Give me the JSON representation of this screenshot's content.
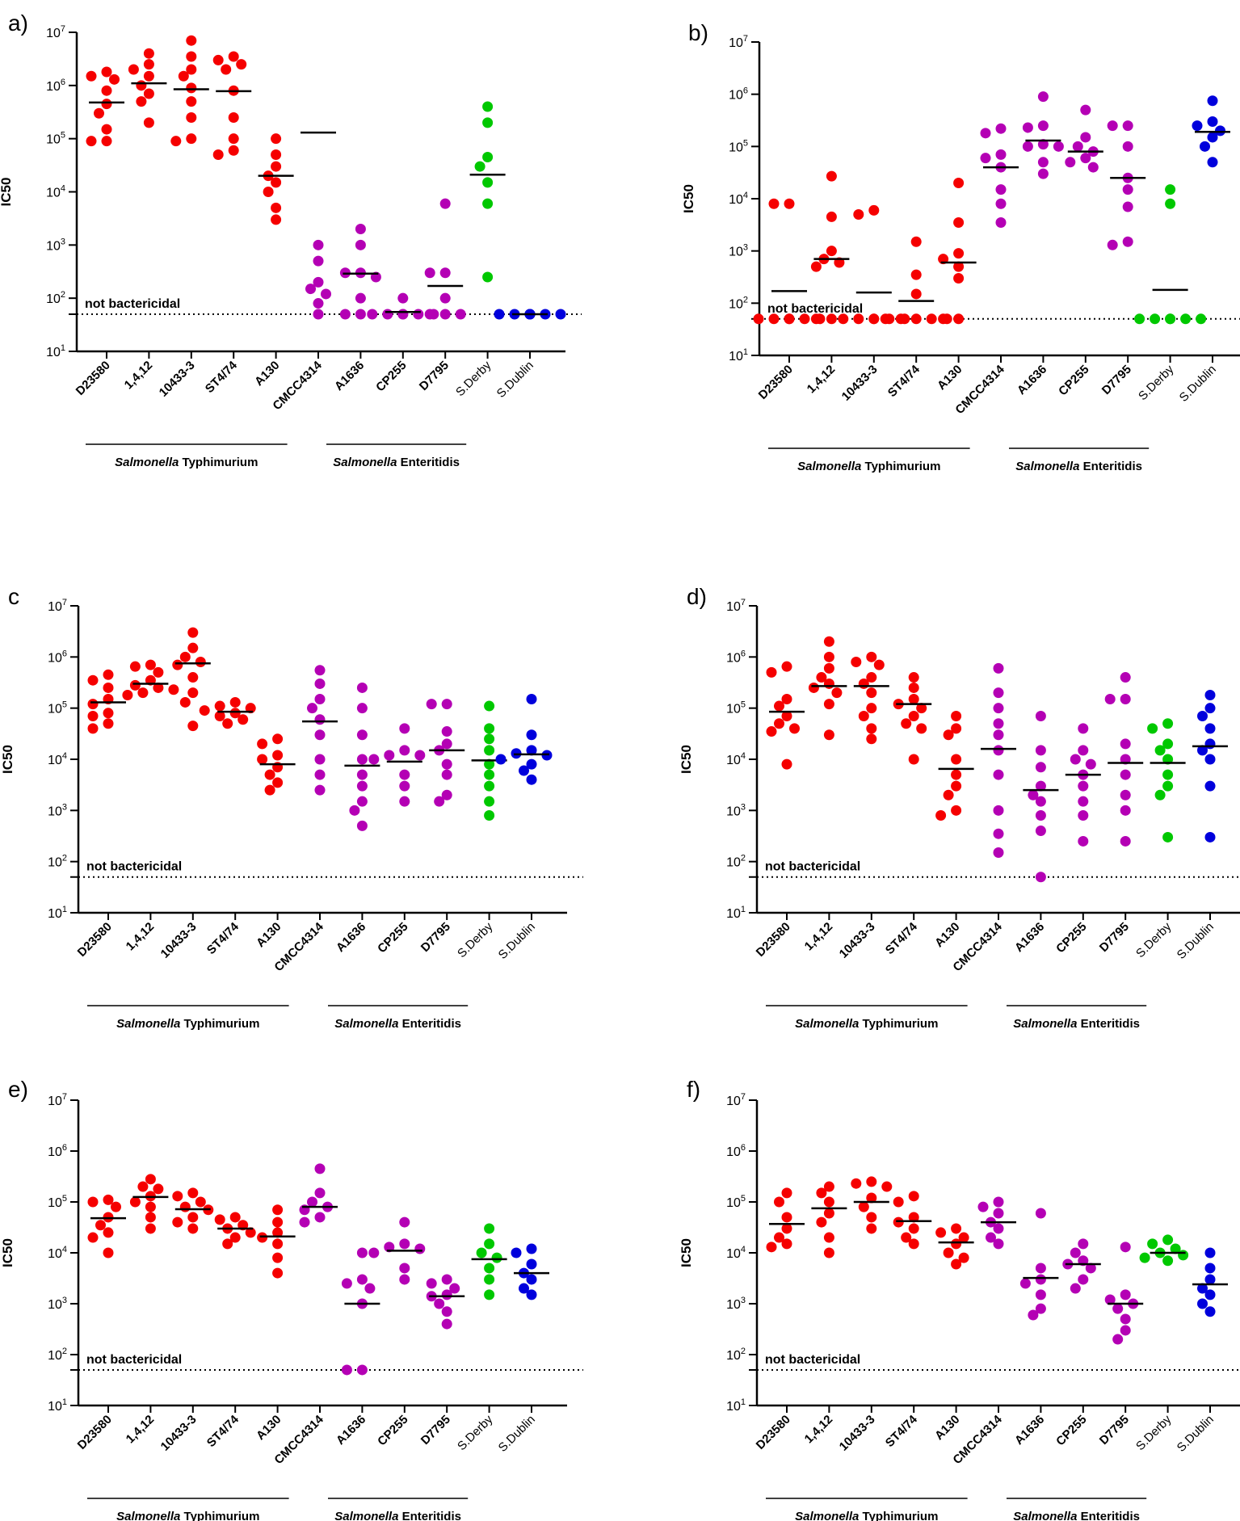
{
  "colors": {
    "Typhimurium": "#f50000",
    "Enteritidis": "#b400b4",
    "Derby": "#00c800",
    "Dublin": "#0000dc",
    "axis": "#000000"
  },
  "ylabel": "IC50",
  "threshold_label": "not bactericidal",
  "y_tick_base": "10",
  "y_tick_exps": [
    "1",
    "2",
    "3",
    "4",
    "5",
    "6",
    "7"
  ],
  "groups": {
    "typhimurium_italic": "Salmonella",
    "typhimurium_rest": " Typhimurium",
    "enteritidis_italic": "Salmonella",
    "enteritidis_rest": " Enteritidis"
  },
  "categories": [
    "D23580",
    "1,4,12",
    "10433-3",
    "ST4/74",
    "A130",
    "CMCC4314",
    "A1636",
    "CP255",
    "D7795",
    "S.Derby",
    "S.Dublin"
  ],
  "chart_data": [
    {
      "panel": "a)",
      "type": "scatter",
      "ylabel": "IC50",
      "yscale": "log",
      "ylim": [
        10,
        10000000
      ],
      "threshold": 50,
      "categories": [
        "D23580",
        "1,4,12",
        "10433-3",
        "ST4/74",
        "A130",
        "CMCC4314",
        "A1636",
        "CP255",
        "D7795",
        "S.Derby",
        "S.Dublin"
      ],
      "medians": [
        480000,
        1100000,
        850000,
        780000,
        20000,
        130000,
        290,
        55,
        170,
        21000,
        50
      ],
      "points": [
        [
          1800000,
          1500000,
          1300000,
          800000,
          450000,
          300000,
          150000,
          90000,
          90000
        ],
        [
          4000000,
          2500000,
          2000000,
          1500000,
          1000000,
          700000,
          500000,
          200000
        ],
        [
          7000000,
          3500000,
          2000000,
          1500000,
          900000,
          500000,
          250000,
          100000,
          90000
        ],
        [
          3500000,
          3000000,
          2500000,
          2000000,
          800000,
          250000,
          100000,
          60000,
          50000
        ],
        [
          100000,
          50000,
          30000,
          20000,
          15000,
          10000,
          5000,
          3000
        ],
        [
          1000,
          500,
          200,
          150,
          120,
          80,
          50
        ],
        [
          2000,
          1000,
          300,
          300,
          250,
          100,
          50,
          50
        ],
        [
          100,
          50,
          50,
          50,
          50,
          50,
          50
        ],
        [
          6000,
          300,
          300,
          100,
          50,
          50,
          50
        ],
        [
          400000,
          200000,
          45000,
          30000,
          15000,
          6000,
          250
        ],
        [
          50,
          50,
          50,
          50,
          50,
          50,
          50,
          50
        ]
      ]
    },
    {
      "panel": "b)",
      "type": "scatter",
      "ylabel": "IC50",
      "yscale": "log",
      "ylim": [
        10,
        10000000
      ],
      "threshold": 50,
      "categories": [
        "D23580",
        "1,4,12",
        "10433-3",
        "ST4/74",
        "A130",
        "CMCC4314",
        "A1636",
        "CP255",
        "D7795",
        "S.Derby",
        "S.Dublin"
      ],
      "medians": [
        170,
        700,
        160,
        110,
        600,
        40000,
        130000,
        80000,
        25000,
        180,
        190000
      ],
      "points": [
        [
          8000,
          8000,
          50,
          50,
          50,
          50,
          50,
          50
        ],
        [
          27000,
          4500,
          1000,
          700,
          600,
          500,
          50,
          50
        ],
        [
          6000,
          5000,
          50,
          50,
          50,
          50,
          50,
          50
        ],
        [
          1500,
          350,
          150,
          50,
          50,
          50,
          50,
          50
        ],
        [
          20000,
          3500,
          900,
          700,
          500,
          300,
          50,
          50
        ],
        [
          220000,
          180000,
          70000,
          60000,
          40000,
          15000,
          8000,
          3500
        ],
        [
          900000,
          250000,
          230000,
          110000,
          100000,
          100000,
          50000,
          30000
        ],
        [
          500000,
          150000,
          100000,
          80000,
          60000,
          50000,
          40000
        ],
        [
          250000,
          250000,
          100000,
          25000,
          15000,
          7000,
          1500,
          1300
        ],
        [
          15000,
          8000,
          50,
          50,
          50,
          50,
          50,
          50
        ],
        [
          750000,
          300000,
          250000,
          200000,
          150000,
          100000,
          50000
        ]
      ]
    },
    {
      "panel": "c",
      "type": "scatter",
      "ylabel": "IC50",
      "yscale": "log",
      "ylim": [
        10,
        10000000
      ],
      "threshold": 50,
      "categories": [
        "D23580",
        "1,4,12",
        "10433-3",
        "ST4/74",
        "A130",
        "CMCC4314",
        "A1636",
        "CP255",
        "D7795",
        "S.Derby",
        "S.Dublin"
      ],
      "medians": [
        130000,
        300000,
        750000,
        85000,
        8000,
        55000,
        7500,
        9000,
        15000,
        9500,
        12500
      ],
      "points": [
        [
          450000,
          350000,
          250000,
          150000,
          120000,
          80000,
          70000,
          50000,
          40000
        ],
        [
          700000,
          650000,
          500000,
          350000,
          280000,
          250000,
          230000,
          200000,
          180000
        ],
        [
          3000000,
          1500000,
          1000000,
          800000,
          700000,
          400000,
          200000,
          130000,
          45000
        ],
        [
          130000,
          110000,
          100000,
          90000,
          80000,
          70000,
          60000,
          50000
        ],
        [
          25000,
          20000,
          12000,
          10000,
          7000,
          5000,
          3500,
          2500
        ],
        [
          550000,
          300000,
          150000,
          100000,
          60000,
          30000,
          10000,
          5000,
          2500
        ],
        [
          250000,
          100000,
          30000,
          10000,
          5000,
          3000,
          1500,
          1000,
          500
        ],
        [
          40000,
          15000,
          12000,
          12000,
          10000,
          5000,
          3000,
          1500
        ],
        [
          120000,
          120000,
          35000,
          20000,
          15000,
          8000,
          5000,
          2000,
          1500
        ],
        [
          110000,
          40000,
          25000,
          15000,
          8000,
          5000,
          3000,
          1500,
          800
        ],
        [
          150000,
          30000,
          15000,
          13000,
          12000,
          10000,
          8000,
          6000,
          4000
        ]
      ]
    },
    {
      "panel": "d)",
      "type": "scatter",
      "ylabel": "IC50",
      "yscale": "log",
      "ylim": [
        10,
        10000000
      ],
      "threshold": 50,
      "categories": [
        "D23580",
        "1,4,12",
        "10433-3",
        "ST4/74",
        "A130",
        "CMCC4314",
        "A1636",
        "CP255",
        "D7795",
        "S.Derby",
        "S.Dublin"
      ],
      "medians": [
        85000,
        270000,
        270000,
        120000,
        6500,
        16000,
        2500,
        5000,
        8500,
        8500,
        18000
      ],
      "points": [
        [
          650000,
          500000,
          150000,
          110000,
          70000,
          50000,
          40000,
          35000,
          8000
        ],
        [
          2000000,
          1000000,
          600000,
          400000,
          300000,
          250000,
          200000,
          120000,
          30000
        ],
        [
          1000000,
          800000,
          700000,
          400000,
          300000,
          200000,
          100000,
          70000,
          40000,
          25000
        ],
        [
          400000,
          250000,
          150000,
          120000,
          100000,
          70000,
          50000,
          40000,
          10000
        ],
        [
          70000,
          40000,
          30000,
          10000,
          5000,
          3000,
          2000,
          1000,
          800
        ],
        [
          600000,
          200000,
          100000,
          50000,
          30000,
          15000,
          5000,
          1000,
          350,
          150
        ],
        [
          70000,
          15000,
          7000,
          3000,
          2000,
          1500,
          800,
          400,
          50
        ],
        [
          40000,
          15000,
          10000,
          8000,
          5000,
          3000,
          1500,
          800,
          250
        ],
        [
          400000,
          150000,
          150000,
          20000,
          10000,
          5000,
          2000,
          1000,
          250
        ],
        [
          50000,
          40000,
          20000,
          15000,
          10000,
          5000,
          3000,
          2000,
          300
        ],
        [
          180000,
          100000,
          70000,
          40000,
          20000,
          15000,
          10000,
          3000,
          300
        ]
      ]
    },
    {
      "panel": "e)",
      "type": "scatter",
      "ylabel": "IC50",
      "yscale": "log",
      "ylim": [
        10,
        10000000
      ],
      "threshold": 50,
      "categories": [
        "D23580",
        "1,4,12",
        "10433-3",
        "ST4/74",
        "A130",
        "CMCC4314",
        "A1636",
        "CP255",
        "D7795",
        "S.Derby",
        "S.Dublin"
      ],
      "medians": [
        48000,
        125000,
        72000,
        30000,
        21000,
        80000,
        1000,
        11000,
        1400,
        7500,
        4000
      ],
      "points": [
        [
          110000,
          100000,
          80000,
          50000,
          35000,
          25000,
          20000,
          10000
        ],
        [
          280000,
          200000,
          180000,
          130000,
          100000,
          80000,
          50000,
          30000
        ],
        [
          150000,
          130000,
          100000,
          80000,
          70000,
          50000,
          40000,
          30000
        ],
        [
          50000,
          45000,
          35000,
          30000,
          25000,
          20000,
          15000
        ],
        [
          70000,
          40000,
          25000,
          20000,
          15000,
          8000,
          4000
        ],
        [
          450000,
          150000,
          100000,
          80000,
          70000,
          50000,
          40000
        ],
        [
          10000,
          3000,
          2500,
          2000,
          1000,
          50,
          50
        ],
        [
          40000,
          15000,
          13000,
          12000,
          10000,
          5000,
          3000
        ],
        [
          3000,
          2500,
          2000,
          1500,
          1400,
          1000,
          700,
          400
        ],
        [
          30000,
          15000,
          10000,
          8000,
          5000,
          3000,
          1500
        ],
        [
          12000,
          10000,
          6000,
          4000,
          3000,
          2000,
          1500
        ]
      ]
    },
    {
      "panel": "f)",
      "type": "scatter",
      "ylabel": "IC50",
      "yscale": "log",
      "ylim": [
        10,
        10000000
      ],
      "threshold": 50,
      "categories": [
        "D23580",
        "1,4,12",
        "10433-3",
        "ST4/74",
        "A130",
        "CMCC4314",
        "A1636",
        "CP255",
        "D7795",
        "S.Derby",
        "S.Dublin"
      ],
      "medians": [
        37000,
        75000,
        100000,
        42000,
        16000,
        40000,
        3200,
        6000,
        1000,
        10000,
        2400
      ],
      "points": [
        [
          150000,
          100000,
          50000,
          30000,
          20000,
          15000,
          13000
        ],
        [
          200000,
          150000,
          100000,
          60000,
          40000,
          20000,
          10000
        ],
        [
          250000,
          230000,
          200000,
          120000,
          80000,
          50000,
          30000
        ],
        [
          130000,
          100000,
          50000,
          40000,
          30000,
          20000,
          15000
        ],
        [
          30000,
          25000,
          20000,
          15000,
          10000,
          8000,
          6000
        ],
        [
          100000,
          80000,
          60000,
          40000,
          30000,
          20000,
          15000
        ],
        [
          60000,
          5000,
          3000,
          2500,
          1500,
          800,
          600
        ],
        [
          15000,
          10000,
          7000,
          6000,
          5000,
          3000,
          2000
        ],
        [
          13000,
          1500,
          1200,
          1000,
          800,
          500,
          300,
          200
        ],
        [
          18000,
          15000,
          12000,
          10000,
          9000,
          8000,
          7000
        ],
        [
          10000,
          5000,
          3000,
          2000,
          1500,
          1000,
          700
        ]
      ]
    }
  ]
}
